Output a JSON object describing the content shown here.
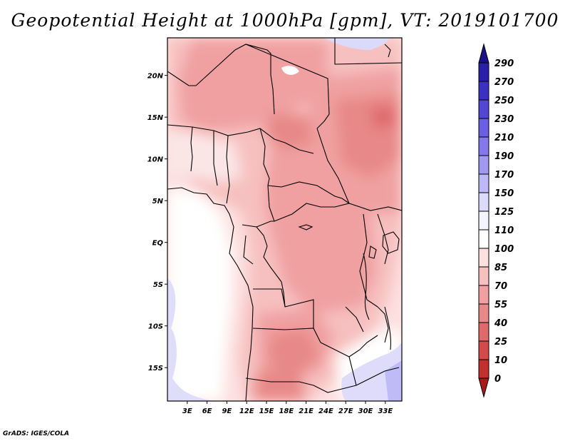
{
  "title": "Geopotential Height at 1000hPa [gpm], VT: 2019101700",
  "credit": "GrADS: IGES/COLA",
  "map": {
    "variable": "Geopotential Height at 1000hPa",
    "units": "gpm",
    "valid_time": "2019101700",
    "lon_range": [
      0,
      35.5
    ],
    "lat_range": [
      -19,
      24.5
    ],
    "lat_ticks": [
      {
        "value": 20,
        "label": "20N"
      },
      {
        "value": 15,
        "label": "15N"
      },
      {
        "value": 10,
        "label": "10N"
      },
      {
        "value": 5,
        "label": "5N"
      },
      {
        "value": 0,
        "label": "EQ"
      },
      {
        "value": -5,
        "label": "5S"
      },
      {
        "value": -10,
        "label": "10S"
      },
      {
        "value": -15,
        "label": "15S"
      }
    ],
    "lon_ticks": [
      {
        "value": 3,
        "label": "3E"
      },
      {
        "value": 6,
        "label": "6E"
      },
      {
        "value": 9,
        "label": "9E"
      },
      {
        "value": 12,
        "label": "12E"
      },
      {
        "value": 15,
        "label": "15E"
      },
      {
        "value": 18,
        "label": "18E"
      },
      {
        "value": 21,
        "label": "21E"
      },
      {
        "value": 24,
        "label": "24E"
      },
      {
        "value": 27,
        "label": "27E"
      },
      {
        "value": 30,
        "label": "30E"
      },
      {
        "value": 33,
        "label": "33E"
      }
    ]
  },
  "colorbar": {
    "levels": [
      {
        "label": "290",
        "color": "#1c0f8c"
      },
      {
        "label": "270",
        "color": "#2a20a8"
      },
      {
        "label": "250",
        "color": "#3a31c0"
      },
      {
        "label": "230",
        "color": "#5246d4"
      },
      {
        "label": "210",
        "color": "#6a5ee2"
      },
      {
        "label": "190",
        "color": "#8478ec"
      },
      {
        "label": "170",
        "color": "#a198f2"
      },
      {
        "label": "150",
        "color": "#bdb8f6"
      },
      {
        "label": "125",
        "color": "#dcdafa"
      },
      {
        "label": "110",
        "color": "#f4f4fe"
      },
      {
        "label": "100",
        "color": "#ffffff"
      },
      {
        "label": "85",
        "color": "#fde0e0"
      },
      {
        "label": "70",
        "color": "#f7c0c0"
      },
      {
        "label": "55",
        "color": "#f0a0a0"
      },
      {
        "label": "40",
        "color": "#e88888"
      },
      {
        "label": "25",
        "color": "#df6a6a"
      },
      {
        "label": "10",
        "color": "#d44a4a"
      },
      {
        "label": "0",
        "color": "#c23030"
      }
    ],
    "min_color": "#a81818"
  }
}
